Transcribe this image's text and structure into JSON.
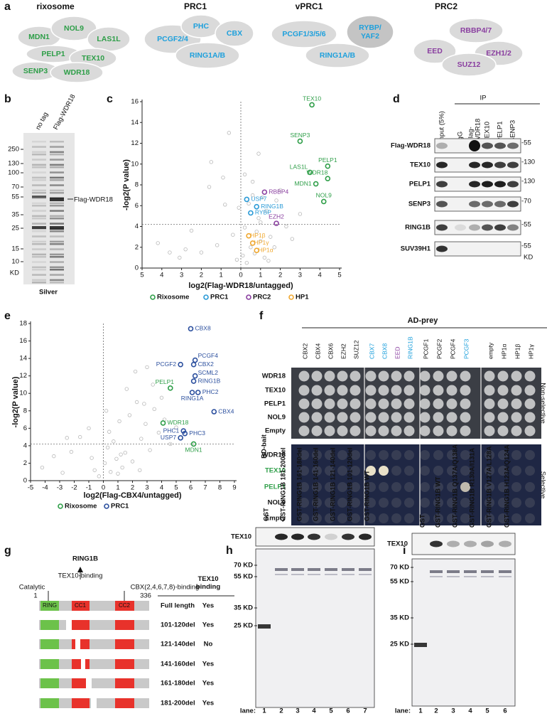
{
  "panels": {
    "a": {
      "label": "a",
      "complexes": [
        {
          "title": "rixosome",
          "color": "#2e9e48",
          "members": [
            "MDN1",
            "NOL9",
            "LAS1L",
            "PELP1",
            "TEX10",
            "SENP3",
            "WDR18"
          ]
        },
        {
          "title": "PRC1",
          "color": "#1ea0dc",
          "members": [
            "PCGF2/4",
            "PHC",
            "CBX",
            "RING1A/B"
          ]
        },
        {
          "title": "vPRC1",
          "color": "#1ea0dc",
          "members": [
            "PCGF1/3/5/6",
            [
              "RYBP/",
              "YAF2"
            ],
            "RING1A/B"
          ]
        },
        {
          "title": "PRC2",
          "color": "#8a3fa0",
          "members": [
            "RBBP4/7",
            "EED",
            "EZH1/2",
            "SUZ12"
          ]
        }
      ]
    },
    "b": {
      "label": "b",
      "lanes": [
        "no tag",
        "Flag-WDR18"
      ],
      "markers": [
        250,
        130,
        100,
        70,
        55,
        35,
        25,
        15,
        10
      ],
      "unit": "KD",
      "band": "Flag-WDR18",
      "stain": "Silver"
    },
    "d": {
      "label": "d",
      "header": "IP",
      "lanes": [
        "Input (5%)",
        "IgG",
        [
          "Flag-",
          "WDR18"
        ],
        "TEX10",
        "PELP1",
        "SENP3"
      ],
      "rows": [
        {
          "name": "Flag-WDR18",
          "size": "-55"
        },
        {
          "name": "TEX10",
          "size": "-130"
        },
        {
          "name": "PELP1",
          "size": "-130"
        },
        {
          "name": "SENP3",
          "size": "-70"
        },
        {
          "name": "RING1B",
          "size": "-55"
        },
        {
          "name": "SUV39H1",
          "size": "-55"
        }
      ],
      "unit": "KD"
    },
    "f": {
      "label": "f",
      "header": "AD-prey",
      "bait_label": "BD-bait",
      "columns": [
        "CBX2",
        "CBX4",
        "CBX6",
        "EZH2",
        "SUZ12",
        "CBX7",
        "CBX8",
        "EED",
        "RING1B",
        "PCGF1",
        "PCGF2",
        "PCGF4",
        "PCGF3",
        "empty",
        "HP1α",
        "HP1β",
        "HP1γ"
      ],
      "column_colors": [
        "#111",
        "#111",
        "#111",
        "#111",
        "#111",
        "#1ea0dc",
        "#1ea0dc",
        "#8a3fa0",
        "#1ea0dc",
        "#111",
        "#111",
        "#111",
        "#1ea0dc",
        "#111",
        "#111",
        "#111",
        "#111"
      ],
      "conditions": [
        {
          "name": "Non-selective",
          "rows": [
            "WDR18",
            "TEX10",
            "PELP1",
            "NOL9",
            "Empty"
          ],
          "row_colors": [
            "#111",
            "#111",
            "#111",
            "#111",
            "#111"
          ]
        },
        {
          "name": "Selective",
          "rows": [
            "WDR18",
            "TEX10",
            "PELP1",
            "NOL9",
            "Empty"
          ],
          "row_colors": [
            "#111",
            "#2e9e48",
            "#2e9e48",
            "#111",
            "#111"
          ]
        }
      ]
    },
    "g": {
      "label": "g",
      "title": "RING1B",
      "arrow_label": "TEX10-binding",
      "left_note": "Catalytic",
      "right_note": "CBX(2,4,6,7,8)-binding",
      "start": 1,
      "end": 336,
      "domains": [
        "RING",
        "CC1",
        "CC2"
      ],
      "header": [
        "TEX10",
        "binding"
      ],
      "rows": [
        {
          "name": "Full length",
          "binding": "Yes"
        },
        {
          "name": "101-120del",
          "binding": "Yes"
        },
        {
          "name": "121-140del",
          "binding": "No"
        },
        {
          "name": "141-160del",
          "binding": "Yes"
        },
        {
          "name": "161-180del",
          "binding": "Yes"
        },
        {
          "name": "181-200del",
          "binding": "Yes"
        }
      ]
    },
    "h": {
      "label": "h",
      "lanes": [
        "GST",
        "GST-RING1B 181-200del",
        "GST-RING1B 161-180del",
        "GST-RING1B 141-160del",
        "GST-RING1B 121-140del",
        "GST-RING1B 101-120del",
        "GST-RING1B WT"
      ],
      "blot": "TEX10",
      "markers": [
        "70 KD",
        "55 KD",
        "35 KD",
        "25 KD"
      ],
      "lane_caption": "lane:",
      "lane_numbers": [
        1,
        2,
        3,
        4,
        5,
        6,
        7
      ]
    },
    "i": {
      "label": "i",
      "lanes": [
        "GST",
        "GST-RING1B WT",
        "GST-RING1B Q137A/Q138A",
        "GST-RING1B R130A/I131A",
        "GST-RING1B V127A/L128A",
        "GST-RING1B H123A/Q124A"
      ],
      "blot": "TEX10",
      "markers": [
        "70 KD",
        "55 KD",
        "35 KD",
        "25 KD"
      ],
      "lane_caption": "lane:",
      "lane_numbers": [
        1,
        2,
        3,
        4,
        5,
        6
      ]
    }
  },
  "chart_data": [
    {
      "type": "scatter",
      "panel": "c",
      "x_label": "log2(Flag-WDR18/untagged)",
      "y_label": "-log2(P value)",
      "xlim": [
        -5,
        5
      ],
      "ylim": [
        0,
        16
      ],
      "xticks": [
        {
          "value": -5,
          "label": "5"
        },
        {
          "value": -4,
          "label": "4"
        },
        {
          "value": -3,
          "label": "3"
        },
        {
          "value": -2,
          "label": "2"
        },
        {
          "value": -1,
          "label": "1"
        },
        0,
        1,
        2,
        3,
        4,
        5
      ],
      "yticks": [
        0,
        2,
        4,
        6,
        8,
        10,
        12,
        14,
        16
      ],
      "hline": 4.2,
      "vline": 0,
      "background": {
        "color": "#b8b8b8",
        "x": [
          -4.2,
          -3.1,
          -2.5,
          -2.0,
          -1.6,
          -1.2,
          -0.9,
          -0.6,
          -0.4,
          -0.2,
          -0.1,
          0.1,
          0.2,
          0.3,
          0.4,
          0.5,
          0.6,
          0.7,
          0.8,
          0.9,
          1.0,
          1.1,
          1.2,
          1.3,
          1.5,
          1.7,
          2.0,
          2.3,
          2.6,
          3.0,
          -1.5,
          -0.8,
          0.2,
          0.6,
          1.0,
          1.4,
          -2.8,
          -3.6,
          0.9,
          1.8
        ],
        "y": [
          2.4,
          1.0,
          3.6,
          1.5,
          7.8,
          2.2,
          8.7,
          13.0,
          3.2,
          0.8,
          5.8,
          1.2,
          3.9,
          0.5,
          6.2,
          2.0,
          7.0,
          1.4,
          3.5,
          4.8,
          2.6,
          6.8,
          1.0,
          5.5,
          3.0,
          2.0,
          7.5,
          4.0,
          2.8,
          5.2,
          10.2,
          6.1,
          9.0,
          8.3,
          4.4,
          0.7,
          1.8,
          1.5,
          11.0,
          6.5
        ]
      },
      "series": [
        {
          "name": "Rixosome",
          "color": "#2e9e48",
          "labels": [
            "TEX10",
            "SENP3",
            "PELP1",
            "LAS1L",
            "WDR18",
            "MDN1",
            "NOL9"
          ],
          "x": [
            3.6,
            3.0,
            4.4,
            3.5,
            4.4,
            3.8,
            4.2
          ],
          "y": [
            15.7,
            12.2,
            9.8,
            9.2,
            8.6,
            8.1,
            6.4
          ]
        },
        {
          "name": "PRC1",
          "color": "#2a9ad6",
          "labels": [
            "USP7",
            "RING1B",
            "RYBP"
          ],
          "x": [
            0.3,
            0.8,
            0.5
          ],
          "y": [
            6.6,
            5.9,
            5.3
          ]
        },
        {
          "name": "PRC2",
          "color": "#8a3fa0",
          "labels": [
            "RBBP4",
            "EZH2"
          ],
          "x": [
            1.2,
            1.8
          ],
          "y": [
            7.3,
            4.3
          ]
        },
        {
          "name": "HP1",
          "color": "#f0a830",
          "labels": [
            "HP1β",
            "HP1γ",
            "HP1α"
          ],
          "x": [
            0.4,
            0.6,
            0.8
          ],
          "y": [
            3.1,
            2.4,
            1.7
          ]
        }
      ]
    },
    {
      "type": "scatter",
      "panel": "e",
      "x_label": "log2(Flag-CBX4/untagged)",
      "y_label": "-log2(P value)",
      "xlim": [
        -5,
        9
      ],
      "ylim": [
        0,
        18
      ],
      "xticks": [
        -5,
        -4,
        -3,
        -2,
        -1,
        0,
        1,
        2,
        3,
        4,
        5,
        6,
        7,
        8,
        9
      ],
      "yticks": [
        0,
        2,
        4,
        6,
        8,
        10,
        12,
        14,
        16,
        18
      ],
      "hline": 4.2,
      "vline": 0,
      "background": {
        "color": "#b8b8b8",
        "x": [
          -4.2,
          -3.4,
          -2.8,
          -2.2,
          -1.6,
          -1.0,
          -0.6,
          -0.3,
          0.1,
          0.3,
          0.5,
          0.7,
          0.9,
          1.1,
          1.3,
          1.5,
          1.8,
          2.0,
          2.3,
          2.6,
          2.9,
          3.2,
          3.5,
          3.8,
          4.2,
          4.6,
          5.0,
          0.4,
          1.0,
          1.6,
          2.2,
          2.8,
          3.4,
          -0.8,
          -2.5,
          0.2,
          1.2,
          2.5,
          3.0,
          4.0
        ],
        "y": [
          1.5,
          2.8,
          0.9,
          3.3,
          5.0,
          6.0,
          1.2,
          0.5,
          2.0,
          3.8,
          1.0,
          4.5,
          2.5,
          6.8,
          1.5,
          3.2,
          7.5,
          2.2,
          9.0,
          4.8,
          6.5,
          3.5,
          8.2,
          5.5,
          7.0,
          4.2,
          6.1,
          5.6,
          0.8,
          10.5,
          12.5,
          8.8,
          11.0,
          2.6,
          4.9,
          8.0,
          3.0,
          1.2,
          13.0,
          9.5
        ]
      },
      "series": [
        {
          "name": "Rixosome",
          "color": "#2e9e48",
          "labels": [
            "PELP1",
            "WDR18",
            "MDN1"
          ],
          "x": [
            4.6,
            4.1,
            6.2
          ],
          "y": [
            10.6,
            6.6,
            4.2
          ]
        },
        {
          "name": "PRC1",
          "color": "#2b4f9e",
          "labels": [
            "CBX8",
            "PCGF4",
            "CBX2",
            "PCGF2",
            "SCML2",
            "RING1B",
            "PHC2",
            "RING1A",
            "CBX4",
            "PHC1",
            "PHC3",
            "USP7"
          ],
          "x": [
            6.0,
            6.3,
            6.2,
            5.3,
            6.3,
            6.2,
            6.5,
            6.1,
            7.6,
            5.5,
            5.6,
            5.3
          ],
          "y": [
            17.4,
            13.8,
            13.3,
            13.3,
            12.0,
            11.4,
            10.1,
            10.1,
            7.9,
            5.7,
            5.4,
            4.9
          ]
        }
      ]
    }
  ]
}
